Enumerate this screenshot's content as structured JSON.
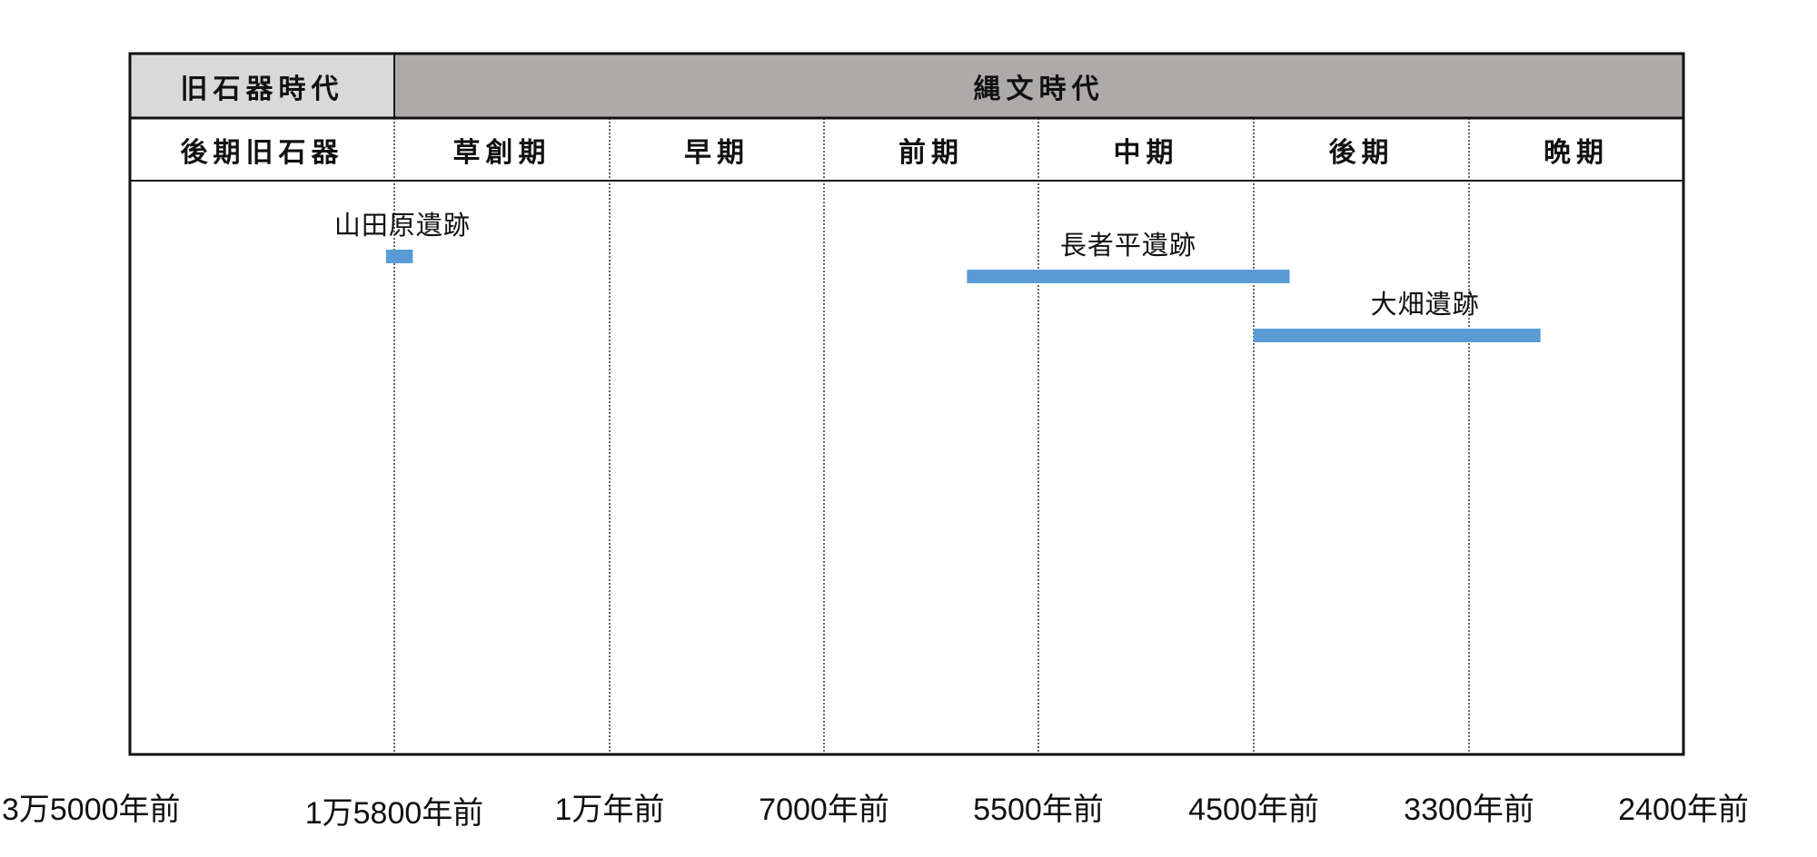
{
  "chart_data": {
    "type": "timeline",
    "title": "",
    "eras": [
      {
        "label": "旧石器時代",
        "start_tick": 0,
        "end_tick": 1,
        "fill": "#d9d9d9"
      },
      {
        "label": "縄文時代",
        "start_tick": 1,
        "end_tick": 7,
        "fill": "#aeaaaa"
      }
    ],
    "periods": [
      {
        "label": "後期旧石器",
        "start_tick": 0,
        "end_tick": 1
      },
      {
        "label": "草創期",
        "start_tick": 1,
        "end_tick": 2
      },
      {
        "label": "早期",
        "start_tick": 2,
        "end_tick": 3
      },
      {
        "label": "前期",
        "start_tick": 3,
        "end_tick": 4
      },
      {
        "label": "中期",
        "start_tick": 4,
        "end_tick": 5
      },
      {
        "label": "後期",
        "start_tick": 5,
        "end_tick": 6
      },
      {
        "label": "晩期",
        "start_tick": 6,
        "end_tick": 7
      }
    ],
    "x_ticks": [
      {
        "label": "3万5000年前",
        "years_ago": 35000
      },
      {
        "label": "1万5800年前",
        "years_ago": 15800
      },
      {
        "label": "1万年前",
        "years_ago": 10000
      },
      {
        "label": "7000年前",
        "years_ago": 7000
      },
      {
        "label": "5500年前",
        "years_ago": 5500
      },
      {
        "label": "4500年前",
        "years_ago": 4500
      },
      {
        "label": "3300年前",
        "years_ago": 3300
      },
      {
        "label": "2400年前",
        "years_ago": 2400
      }
    ],
    "sites": [
      {
        "name": "山田原遺跡",
        "start_years_ago": 16400,
        "end_years_ago": 15300,
        "row": 0
      },
      {
        "name": "長者平遺跡",
        "start_years_ago": 6000,
        "end_years_ago": 4300,
        "row": 1
      },
      {
        "name": "大畑遺跡",
        "start_years_ago": 4500,
        "end_years_ago": 3000,
        "row": 2
      }
    ],
    "bar_color": "#5b9bd5",
    "grid": "dotted vertical lines at period boundaries"
  }
}
